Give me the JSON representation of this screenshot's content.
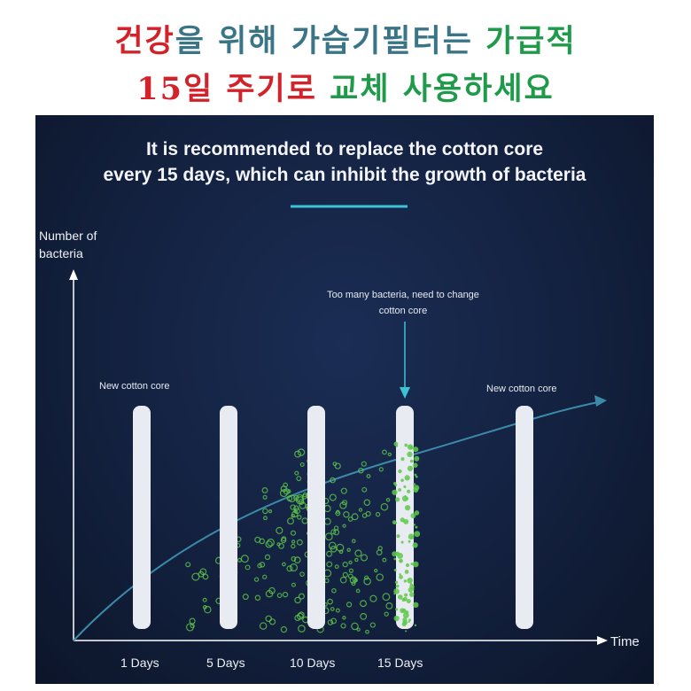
{
  "korean_title": {
    "line1": [
      {
        "text": "건강",
        "color": "red"
      },
      {
        "text": "을 위해 가습기필터는 ",
        "color": "blue"
      },
      {
        "text": "가급적",
        "color": "green"
      }
    ],
    "line2": [
      {
        "text": "15일 주기로 ",
        "color": "red"
      },
      {
        "text": "교체 사용하세요",
        "color": "green"
      }
    ]
  },
  "headline": {
    "line1": "It is recommended to replace the cotton core",
    "line2": "every 15 days, which can inhibit the growth of bacteria"
  },
  "y_axis_label": {
    "line1": "Number of",
    "line2": "bacteria"
  },
  "x_axis_label": "Time",
  "annotation": {
    "line1": "Too many bacteria, need to change",
    "line2": "cotton core"
  },
  "new_core_left": "New cotton core",
  "new_core_right": "New cotton core",
  "ticks": [
    "1 Days",
    "5 Days",
    "10 Days",
    "15 Days"
  ],
  "colors": {
    "accent": "#3bc4d6",
    "bacteria": "#5fc94a",
    "curve": "#3a8aa8"
  }
}
